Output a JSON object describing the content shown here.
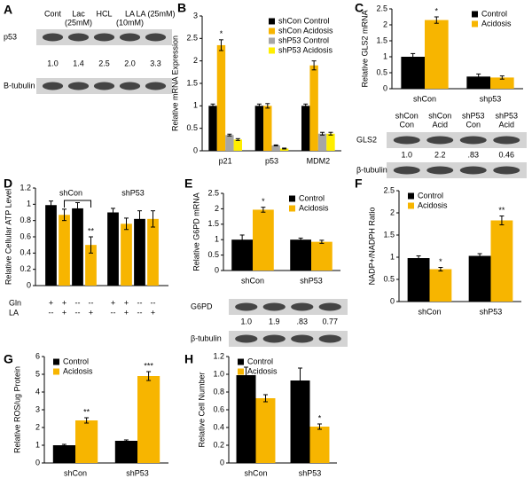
{
  "panel_labels": [
    "A",
    "B",
    "C",
    "D",
    "E",
    "F",
    "G",
    "H"
  ],
  "blots": [
    {
      "lanes": [
        [
          "Cont"
        ],
        [
          "Lac",
          "(25mM)"
        ],
        [
          "HCL"
        ],
        [
          "LA",
          "(10mM)"
        ],
        [
          "LA (25mM)"
        ]
      ],
      "rows": [
        "p53",
        "B-tubulin"
      ],
      "quant": [
        "1.0",
        "1.4",
        "2.5",
        "2.0",
        "3.3"
      ]
    },
    {
      "lanes": [
        [
          "shCon",
          "Con"
        ],
        [
          "shCon",
          "Acid"
        ],
        [
          "shP53",
          "Con"
        ],
        [
          "shP53",
          "Acid"
        ]
      ],
      "rows": [
        "GLS2",
        "β-tubulin"
      ],
      "quant": [
        "1.0",
        "2.2",
        ".83",
        "0.46"
      ]
    },
    {
      "lanes": [],
      "rows": [
        "G6PD",
        "β-tubulin"
      ],
      "quant": [
        "1.0",
        "1.9",
        ".83",
        "0.77"
      ]
    }
  ],
  "chart_data": [
    {
      "type": "bar",
      "ylabel": "Relative mRNA Expression",
      "categories": [
        "p21",
        "p53",
        "MDM2"
      ],
      "series": [
        {
          "name": "shCon Control",
          "color": "#000000",
          "values": [
            1.0,
            1.0,
            1.0
          ],
          "errors": [
            0.04,
            0.04,
            0.04
          ]
        },
        {
          "name": "shCon Acidosis",
          "color": "#f7b500",
          "values": [
            2.35,
            1.0,
            1.9
          ],
          "errors": [
            0.12,
            0.05,
            0.1
          ],
          "significance": [
            "*",
            null,
            null
          ]
        },
        {
          "name": "shP53 Control",
          "color": "#a6a6a6",
          "values": [
            0.35,
            0.12,
            0.38
          ],
          "errors": [
            0.02,
            0.01,
            0.03
          ]
        },
        {
          "name": "shP53 Acidosis",
          "color": "#ffee00",
          "values": [
            0.25,
            0.05,
            0.38
          ],
          "errors": [
            0.02,
            0.01,
            0.03
          ]
        }
      ],
      "ylim": [
        0,
        3
      ],
      "yticks": [
        0,
        0.5,
        1,
        1.5,
        2,
        2.5,
        3
      ],
      "legend": "top-right"
    },
    {
      "type": "bar",
      "ylabel": "Relative GLS2 mRNA",
      "categories": [
        "shCon",
        "shp53"
      ],
      "series": [
        {
          "name": "Control",
          "color": "#000000",
          "values": [
            1.0,
            0.38
          ],
          "errors": [
            0.1,
            0.08
          ]
        },
        {
          "name": "Acidosis",
          "color": "#f7b500",
          "values": [
            2.15,
            0.35
          ],
          "errors": [
            0.1,
            0.05
          ],
          "significance": [
            "*",
            null
          ]
        }
      ],
      "ylim": [
        0,
        2.5
      ],
      "yticks": [
        0,
        0.5,
        1,
        1.5,
        2,
        2.5
      ],
      "legend": "top-right"
    },
    {
      "type": "bar",
      "ylabel": "Relative Cellular ATP Level",
      "groups": [
        "shCon",
        "shP53"
      ],
      "values": [
        0.99,
        0.87,
        0.95,
        0.5,
        0.9,
        0.76,
        0.82,
        0.82
      ],
      "errors": [
        0.05,
        0.07,
        0.07,
        0.1,
        0.05,
        0.07,
        0.1,
        0.1
      ],
      "colors": [
        "#000000",
        "#f7b500",
        "#000000",
        "#f7b500",
        "#000000",
        "#f7b500",
        "#000000",
        "#f7b500"
      ],
      "significance": [
        null,
        null,
        null,
        "**",
        null,
        null,
        null,
        null
      ],
      "condition_rows": [
        {
          "label": "Gln",
          "marks": [
            "+",
            "+",
            "--",
            "--",
            "+",
            "+",
            "--",
            "--"
          ]
        },
        {
          "label": "LA",
          "marks": [
            "--",
            "+",
            "--",
            "+",
            "--",
            "+",
            "--",
            "+"
          ]
        }
      ],
      "ylim": [
        0,
        1.2
      ],
      "yticks": [
        0,
        0.2,
        0.4,
        0.6,
        0.8,
        1,
        1.2
      ]
    },
    {
      "type": "bar",
      "ylabel": "Relative G6PD mRNA",
      "categories": [
        "shCon",
        "shP53"
      ],
      "series": [
        {
          "name": "Control",
          "color": "#000000",
          "values": [
            1.0,
            1.0
          ],
          "errors": [
            0.15,
            0.05
          ]
        },
        {
          "name": "Acidosis",
          "color": "#f7b500",
          "values": [
            1.97,
            0.93
          ],
          "errors": [
            0.08,
            0.05
          ],
          "significance": [
            "*",
            null
          ]
        }
      ],
      "ylim": [
        0,
        2.5
      ],
      "yticks": [
        0,
        0.5,
        1,
        1.5,
        2,
        2.5
      ],
      "legend": "top-right"
    },
    {
      "type": "bar",
      "ylabel": "NADP+/NADPH Ratio",
      "categories": [
        "shCon",
        "shP53"
      ],
      "series": [
        {
          "name": "Control",
          "color": "#000000",
          "values": [
            0.98,
            1.03
          ],
          "errors": [
            0.05,
            0.05
          ]
        },
        {
          "name": "Acidosis",
          "color": "#f7b500",
          "values": [
            0.73,
            1.83
          ],
          "errors": [
            0.04,
            0.1
          ],
          "significance": [
            "*",
            "**"
          ]
        }
      ],
      "ylim": [
        0,
        2.5
      ],
      "yticks": [
        0,
        0.5,
        1,
        1.5,
        2,
        2.5
      ],
      "legend": "top-left"
    },
    {
      "type": "bar",
      "ylabel": "Relative ROS/ug Protein",
      "categories": [
        "shCon",
        "shP53"
      ],
      "series": [
        {
          "name": "Control",
          "color": "#000000",
          "values": [
            1.0,
            1.25
          ],
          "errors": [
            0.05,
            0.05
          ]
        },
        {
          "name": "Acidosis",
          "color": "#f7b500",
          "values": [
            2.4,
            4.9
          ],
          "errors": [
            0.15,
            0.25
          ],
          "significance": [
            "**",
            "***"
          ]
        }
      ],
      "ylim": [
        0,
        6
      ],
      "yticks": [
        0,
        1,
        2,
        3,
        4,
        5,
        6
      ],
      "legend": "top-left"
    },
    {
      "type": "bar",
      "ylabel": "Relative Cell Number",
      "categories": [
        "shCon",
        "shP53"
      ],
      "series": [
        {
          "name": "Control",
          "color": "#000000",
          "values": [
            0.99,
            0.93
          ],
          "errors": [
            0.09,
            0.14
          ]
        },
        {
          "name": "Acidosis",
          "color": "#f7b500",
          "values": [
            0.73,
            0.41
          ],
          "errors": [
            0.04,
            0.03
          ],
          "significance": [
            null,
            "*"
          ]
        }
      ],
      "ylim": [
        0,
        1.2
      ],
      "yticks": [
        0,
        0.2,
        0.4,
        0.6,
        0.8,
        {
          "value": 1,
          "label": "1.0"
        },
        1.2
      ],
      "legend": "top-left"
    }
  ]
}
